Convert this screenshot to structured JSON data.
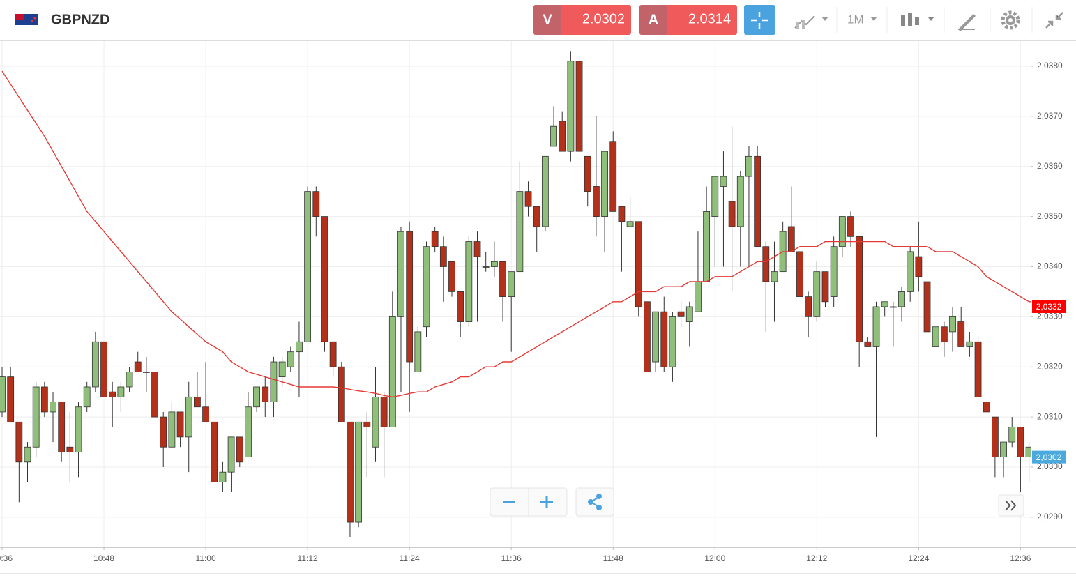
{
  "header": {
    "symbol": "GBPNZD",
    "sell_label": "V",
    "sell_price": "2.0302",
    "buy_label": "A",
    "buy_price": "2.0314",
    "timeframe": "1M"
  },
  "chart_data": {
    "type": "candlestick",
    "x": [
      "10:36",
      "10:37",
      "10:38",
      "10:39",
      "10:40",
      "10:41",
      "10:42",
      "10:43",
      "10:44",
      "10:45",
      "10:46",
      "10:47",
      "10:48",
      "10:49",
      "10:50",
      "10:51",
      "10:52",
      "10:53",
      "10:54",
      "10:55",
      "10:56",
      "10:57",
      "10:58",
      "10:59",
      "11:00",
      "11:01",
      "11:02",
      "11:03",
      "11:04",
      "11:05",
      "11:06",
      "11:07",
      "11:08",
      "11:09",
      "11:10",
      "11:11",
      "11:12",
      "11:13",
      "11:14",
      "11:15",
      "11:16",
      "11:17",
      "11:18",
      "11:19",
      "11:20",
      "11:21",
      "11:22",
      "11:23",
      "11:24",
      "11:25",
      "11:26",
      "11:27",
      "11:28",
      "11:29",
      "11:30",
      "11:31",
      "11:32",
      "11:33",
      "11:34",
      "11:35",
      "11:36",
      "11:37",
      "11:38",
      "11:39",
      "11:40",
      "11:41",
      "11:42",
      "11:43",
      "11:44",
      "11:45",
      "11:46",
      "11:47",
      "11:48",
      "11:49",
      "11:50",
      "11:51",
      "11:52",
      "11:53",
      "11:54",
      "11:55",
      "11:56",
      "11:57",
      "11:58",
      "11:59",
      "12:00",
      "12:01",
      "12:02",
      "12:03",
      "12:04",
      "12:05",
      "12:06",
      "12:07",
      "12:08",
      "12:09",
      "12:10",
      "12:11",
      "12:12",
      "12:13",
      "12:14",
      "12:15",
      "12:16",
      "12:17",
      "12:18",
      "12:19",
      "12:20",
      "12:21",
      "12:22",
      "12:23",
      "12:24",
      "12:25",
      "12:26",
      "12:27",
      "12:28",
      "12:29",
      "12:30",
      "12:31",
      "12:32",
      "12:33",
      "12:34",
      "12:35",
      "12:36",
      "12:37"
    ],
    "open": [
      2.0311,
      2.0318,
      2.0309,
      2.0301,
      2.0304,
      2.0316,
      2.0311,
      2.0313,
      2.0304,
      2.0303,
      2.0312,
      2.0316,
      2.0325,
      2.0315,
      2.0314,
      2.0316,
      2.0321,
      2.0319,
      2.0319,
      2.031,
      2.0304,
      2.0311,
      2.0306,
      2.0314,
      2.0312,
      2.0309,
      2.0297,
      2.0299,
      2.0306,
      2.0302,
      2.0312,
      2.0316,
      2.0313,
      2.0318,
      2.032,
      2.0323,
      2.0325,
      2.0355,
      2.035,
      2.0325,
      2.032,
      2.0309,
      2.0289,
      2.0309,
      2.0304,
      2.0314,
      2.0308,
      2.033,
      2.0347,
      2.0319,
      2.0328,
      2.0347,
      2.0344,
      2.0341,
      2.0335,
      2.0329,
      2.0345,
      2.034,
      2.034,
      2.0341,
      2.0334,
      2.0339,
      2.0355,
      2.0352,
      2.0348,
      2.0364,
      2.0369,
      2.0363,
      2.0381,
      2.0362,
      2.0356,
      2.035,
      2.0365,
      2.0352,
      2.0348,
      2.0349,
      2.0333,
      2.0321,
      2.0331,
      2.032,
      2.0331,
      2.0329,
      2.0331,
      2.0337,
      2.035,
      2.0356,
      2.0353,
      2.0348,
      2.0358,
      2.0362,
      2.0344,
      2.0337,
      2.0339,
      2.0348,
      2.0343,
      2.0334,
      2.033,
      2.0339,
      2.0334,
      2.0344,
      2.035,
      2.0346,
      2.0325,
      2.0324,
      2.0332,
      2.0332,
      2.0332,
      2.0335,
      2.0342,
      2.0337,
      2.0324,
      2.0328,
      2.0327,
      2.0329,
      2.0324,
      2.0325,
      2.0313,
      2.031,
      2.0302,
      2.0305,
      2.0308,
      2.0302
    ],
    "high": [
      2.032,
      2.032,
      2.0309,
      2.0305,
      2.0317,
      2.0317,
      2.0315,
      2.0313,
      2.0311,
      2.0313,
      2.0317,
      2.0327,
      2.0325,
      2.0317,
      2.0317,
      2.032,
      2.0323,
      2.0322,
      2.0319,
      2.0311,
      2.0313,
      2.0311,
      2.0317,
      2.0319,
      2.0321,
      2.0309,
      2.0301,
      2.0306,
      2.0306,
      2.0315,
      2.0316,
      2.0318,
      2.0322,
      2.0322,
      2.0324,
      2.0329,
      2.0356,
      2.0356,
      2.035,
      2.0325,
      2.0321,
      2.0309,
      2.0309,
      2.0311,
      2.032,
      2.0315,
      2.0335,
      2.0348,
      2.0349,
      2.0328,
      2.0345,
      2.0348,
      2.0346,
      2.0341,
      2.0335,
      2.0346,
      2.0347,
      2.0343,
      2.0345,
      2.0341,
      2.0339,
      2.0361,
      2.0357,
      2.0352,
      2.0362,
      2.0372,
      2.0371,
      2.0383,
      2.0382,
      2.0362,
      2.037,
      2.0363,
      2.0367,
      2.0352,
      2.0354,
      2.0349,
      2.0333,
      2.0331,
      2.0334,
      2.0331,
      2.0333,
      2.0333,
      2.0347,
      2.0356,
      2.0358,
      2.0363,
      2.0368,
      2.0359,
      2.0364,
      2.0364,
      2.0345,
      2.0345,
      2.0349,
      2.0356,
      2.0343,
      2.0335,
      2.0341,
      2.0339,
      2.0346,
      2.035,
      2.0351,
      2.0346,
      2.0326,
      2.0333,
      2.0333,
      2.0333,
      2.0336,
      2.0344,
      2.0349,
      2.0337,
      2.0328,
      2.0329,
      2.0332,
      2.0332,
      2.0327,
      2.0326,
      2.0313,
      2.031,
      2.0305,
      2.031,
      2.0308,
      2.0305
    ],
    "low": [
      2.031,
      2.0309,
      2.0293,
      2.0297,
      2.0302,
      2.031,
      2.0305,
      2.0301,
      2.0297,
      2.0298,
      2.0311,
      2.0315,
      2.0314,
      2.0308,
      2.0311,
      2.0315,
      2.0319,
      2.0315,
      2.031,
      2.03,
      2.0304,
      2.0304,
      2.0299,
      2.0312,
      2.0309,
      2.0297,
      2.0295,
      2.0295,
      2.03,
      2.0302,
      2.0311,
      2.031,
      2.031,
      2.0316,
      2.0319,
      2.0314,
      2.0325,
      2.0346,
      2.0323,
      2.0318,
      2.0309,
      2.0286,
      2.0288,
      2.0298,
      2.0301,
      2.0298,
      2.0308,
      2.0315,
      2.0311,
      2.0319,
      2.0326,
      2.0343,
      2.0333,
      2.0334,
      2.0326,
      2.0328,
      2.0329,
      2.0339,
      2.0338,
      2.0329,
      2.0323,
      2.0339,
      2.035,
      2.0343,
      2.0347,
      2.0364,
      2.0363,
      2.0361,
      2.0363,
      2.0352,
      2.0346,
      2.0343,
      2.0351,
      2.0339,
      2.0348,
      2.033,
      2.0319,
      2.0319,
      2.0319,
      2.0317,
      2.0328,
      2.0324,
      2.0331,
      2.0337,
      2.034,
      2.034,
      2.0335,
      2.034,
      2.034,
      2.0344,
      2.0327,
      2.0329,
      2.0339,
      2.0343,
      2.0334,
      2.0326,
      2.0329,
      2.0332,
      2.0332,
      2.0342,
      2.0344,
      2.032,
      2.0324,
      2.0306,
      2.033,
      2.0324,
      2.0329,
      2.0333,
      2.0335,
      2.0327,
      2.0324,
      2.0322,
      2.0323,
      2.0324,
      2.0322,
      2.0314,
      2.0311,
      2.0298,
      2.0298,
      2.0304,
      2.0295,
      2.0297
    ],
    "close": [
      2.0318,
      2.0309,
      2.0301,
      2.0304,
      2.0316,
      2.0311,
      2.0313,
      2.0303,
      2.0303,
      2.0312,
      2.0316,
      2.0325,
      2.0314,
      2.0314,
      2.0316,
      2.0319,
      2.0319,
      2.0319,
      2.031,
      2.0304,
      2.0311,
      2.0306,
      2.0314,
      2.0312,
      2.0309,
      2.0297,
      2.0299,
      2.0306,
      2.0301,
      2.0312,
      2.0316,
      2.0313,
      2.0321,
      2.0321,
      2.0323,
      2.0325,
      2.0355,
      2.035,
      2.0325,
      2.032,
      2.0309,
      2.0289,
      2.0309,
      2.0308,
      2.0314,
      2.0308,
      2.033,
      2.0347,
      2.0321,
      2.0327,
      2.0344,
      2.0344,
      2.034,
      2.0335,
      2.0329,
      2.0345,
      2.0342,
      2.034,
      2.0341,
      2.0334,
      2.0339,
      2.0355,
      2.0352,
      2.0348,
      2.0362,
      2.0368,
      2.0363,
      2.0381,
      2.0363,
      2.0355,
      2.035,
      2.0363,
      2.0351,
      2.0349,
      2.0349,
      2.0332,
      2.0319,
      2.0331,
      2.032,
      2.033,
      2.033,
      2.0332,
      2.0337,
      2.0351,
      2.0358,
      2.0358,
      2.0348,
      2.0358,
      2.0362,
      2.0344,
      2.0337,
      2.0339,
      2.0347,
      2.0343,
      2.0334,
      2.033,
      2.0339,
      2.0333,
      2.0344,
      2.035,
      2.0346,
      2.0325,
      2.0324,
      2.0332,
      2.0333,
      2.0332,
      2.0335,
      2.0343,
      2.0338,
      2.0327,
      2.0328,
      2.0325,
      2.033,
      2.0324,
      2.0325,
      2.0314,
      2.0311,
      2.0302,
      2.0305,
      2.0308,
      2.0302,
      2.0304
    ],
    "up_color": "#8fbf7a",
    "down_color": "#b3301a",
    "overlay": {
      "color": "#e53935",
      "values": [
        2.0379,
        2.03764,
        2.03738,
        2.03712,
        2.03686,
        2.0366,
        2.0363,
        2.036,
        2.0357,
        2.0354,
        2.0351,
        2.0349,
        2.0347,
        2.0345,
        2.0343,
        2.0341,
        2.0339,
        2.0337,
        2.0335,
        2.0333,
        2.0331,
        2.03295,
        2.0328,
        2.03265,
        2.0325,
        2.0324,
        2.0323,
        2.0321,
        2.032,
        2.0319,
        2.03185,
        2.0318,
        2.03175,
        2.0317,
        2.03165,
        2.0316,
        2.0316,
        2.0316,
        2.0316,
        2.0316,
        2.03158,
        2.03155,
        2.03152,
        2.0315,
        2.03147,
        2.03143,
        2.0314,
        2.03143,
        2.03147,
        2.0315,
        2.0315,
        2.0316,
        2.03165,
        2.0317,
        2.0318,
        2.0318,
        2.0319,
        2.032,
        2.032,
        2.0321,
        2.0321,
        2.0322,
        2.0323,
        2.0324,
        2.0325,
        2.0326,
        2.0327,
        2.0328,
        2.0329,
        2.033,
        2.0331,
        2.0332,
        2.0333,
        2.0333,
        2.0334,
        2.0335,
        2.0335,
        2.0335,
        2.0336,
        2.0336,
        2.0336,
        2.0337,
        2.0337,
        2.0337,
        2.0338,
        2.0338,
        2.0338,
        2.0339,
        2.034,
        2.0341,
        2.0341,
        2.0342,
        2.0343,
        2.0343,
        2.0344,
        2.0344,
        2.0344,
        2.0345,
        2.0345,
        2.0345,
        2.0345,
        2.0345,
        2.0345,
        2.0345,
        2.0345,
        2.0344,
        2.0344,
        2.0344,
        2.0344,
        2.0344,
        2.0343,
        2.0343,
        2.0343,
        2.0342,
        2.0341,
        2.034,
        2.0338,
        2.0337,
        2.0336,
        2.0335,
        2.0334,
        2.0333
      ]
    },
    "ylim": [
      2.0284,
      2.0385
    ],
    "yticks": [
      {
        "value": 2.029,
        "label": "2,0290"
      },
      {
        "value": 2.03,
        "label": "2,0300"
      },
      {
        "value": 2.031,
        "label": "2,0310"
      },
      {
        "value": 2.032,
        "label": "2,0320"
      },
      {
        "value": 2.033,
        "label": "2,0330"
      },
      {
        "value": 2.034,
        "label": "2,0340"
      },
      {
        "value": 2.035,
        "label": "2,0350"
      },
      {
        "value": 2.036,
        "label": "2,0360"
      },
      {
        "value": 2.037,
        "label": "2,0370"
      },
      {
        "value": 2.038,
        "label": "2,0380"
      }
    ],
    "xticks": [
      "10:36",
      "10:48",
      "11:00",
      "11:12",
      "11:24",
      "11:36",
      "11:48",
      "12:00",
      "12:12",
      "12:24",
      "12:36"
    ],
    "grid": true,
    "price_tags": [
      {
        "value": 2.0332,
        "label": "2,0332",
        "color": "#ff0000"
      },
      {
        "value": 2.0302,
        "label": "2,0302",
        "color": "#4ba9dd"
      }
    ]
  }
}
